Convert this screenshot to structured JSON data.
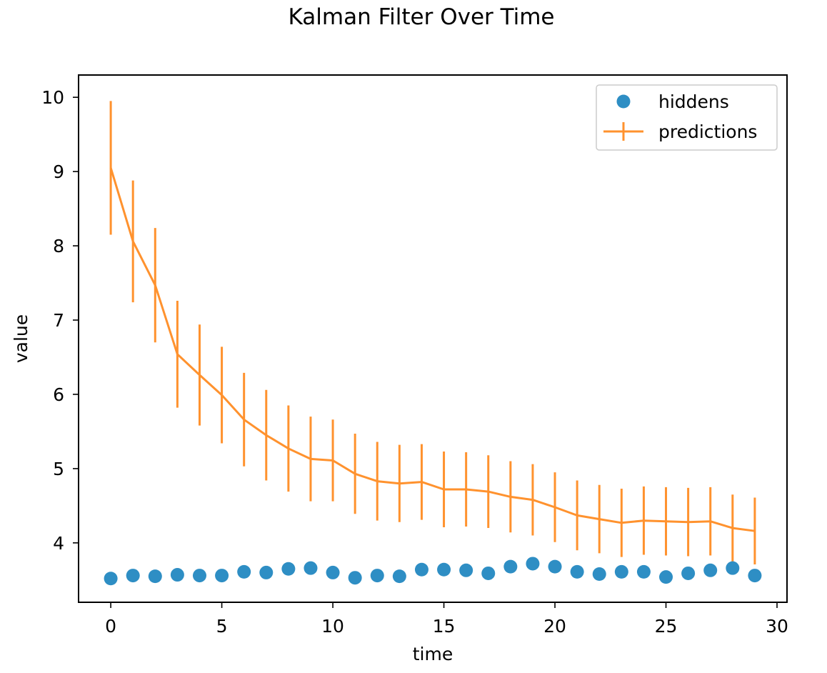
{
  "chart_data": {
    "type": "line",
    "title": "Kalman Filter Over Time",
    "xlabel": "time",
    "ylabel": "value",
    "xlim": [
      -1.45,
      30.45
    ],
    "ylim": [
      3.2,
      10.3
    ],
    "xticks": [
      0,
      5,
      10,
      15,
      20,
      25,
      30
    ],
    "yticks": [
      4,
      5,
      6,
      7,
      8,
      9,
      10
    ],
    "grid": false,
    "legend_position": "top-right",
    "x": [
      0,
      1,
      2,
      3,
      4,
      5,
      6,
      7,
      8,
      9,
      10,
      11,
      12,
      13,
      14,
      15,
      16,
      17,
      18,
      19,
      20,
      21,
      22,
      23,
      24,
      25,
      26,
      27,
      28,
      29
    ],
    "series": [
      {
        "name": "hiddens",
        "kind": "scatter",
        "color": "#2e8ec4",
        "values": [
          3.52,
          3.56,
          3.55,
          3.57,
          3.56,
          3.56,
          3.61,
          3.6,
          3.65,
          3.66,
          3.6,
          3.53,
          3.56,
          3.55,
          3.64,
          3.64,
          3.63,
          3.59,
          3.68,
          3.72,
          3.68,
          3.61,
          3.58,
          3.61,
          3.61,
          3.54,
          3.59,
          3.63,
          3.66,
          3.56
        ]
      },
      {
        "name": "predictions",
        "kind": "errorbar-line",
        "color": "#ff922e",
        "values": [
          9.05,
          8.06,
          7.47,
          6.54,
          6.26,
          5.99,
          5.66,
          5.45,
          5.27,
          5.13,
          5.11,
          4.93,
          4.83,
          4.8,
          4.82,
          4.72,
          4.72,
          4.69,
          4.62,
          4.58,
          4.48,
          4.37,
          4.32,
          4.27,
          4.3,
          4.29,
          4.28,
          4.29,
          4.2,
          4.16
        ],
        "error": [
          0.9,
          0.82,
          0.77,
          0.72,
          0.68,
          0.65,
          0.63,
          0.61,
          0.58,
          0.57,
          0.55,
          0.54,
          0.53,
          0.52,
          0.51,
          0.51,
          0.5,
          0.49,
          0.48,
          0.48,
          0.47,
          0.47,
          0.46,
          0.46,
          0.46,
          0.46,
          0.46,
          0.46,
          0.45,
          0.45
        ]
      }
    ]
  }
}
